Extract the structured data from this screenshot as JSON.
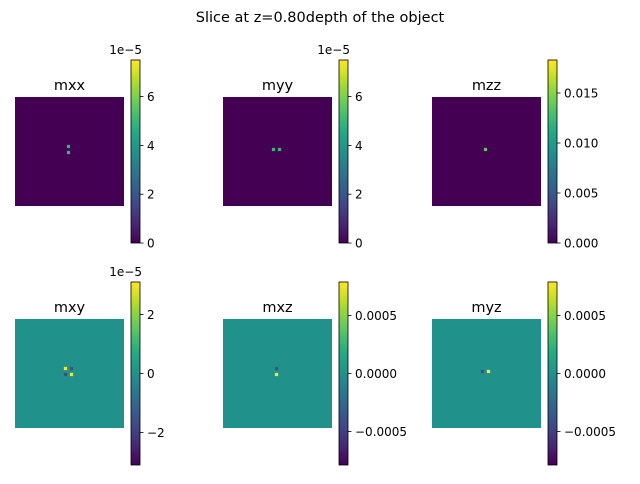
{
  "figure": {
    "title": "Slice at z=0.80depth of the object"
  },
  "chart_data": [
    {
      "type": "heatmap",
      "title": "mxx",
      "background_color": "#440154",
      "colorbar": {
        "min": 0,
        "max": 7.5e-05,
        "offset_text": "1e−5",
        "ticks": [
          0,
          2e-05,
          4e-05,
          6e-05
        ],
        "tick_labels": [
          "0",
          "2",
          "4",
          "6"
        ]
      },
      "spots": [
        {
          "x": 0.0,
          "y": -0.03,
          "color": "#35b779"
        },
        {
          "x": 0.0,
          "y": 0.03,
          "color": "#35b779"
        }
      ]
    },
    {
      "type": "heatmap",
      "title": "myy",
      "background_color": "#440154",
      "colorbar": {
        "min": 0,
        "max": 7.5e-05,
        "offset_text": "1e−5",
        "ticks": [
          0,
          2e-05,
          4e-05,
          6e-05
        ],
        "tick_labels": [
          "0",
          "2",
          "4",
          "6"
        ]
      },
      "spots": [
        {
          "x": -0.03,
          "y": 0.0,
          "color": "#35b779"
        },
        {
          "x": 0.03,
          "y": 0.0,
          "color": "#35b779"
        }
      ]
    },
    {
      "type": "heatmap",
      "title": "mzz",
      "background_color": "#440154",
      "colorbar": {
        "min": 0,
        "max": 0.0183,
        "offset_text": "",
        "ticks": [
          0,
          0.005,
          0.01,
          0.015
        ],
        "tick_labels": [
          "0.000",
          "0.005",
          "0.010",
          "0.015"
        ]
      },
      "spots": [
        {
          "x": 0.0,
          "y": 0.0,
          "color": "#5ec962"
        }
      ]
    },
    {
      "type": "heatmap",
      "title": "mxy",
      "background_color": "#21918c",
      "colorbar": {
        "min": -3.1e-05,
        "max": 3.1e-05,
        "offset_text": "1e−5",
        "ticks": [
          -2e-05,
          0,
          2e-05
        ],
        "tick_labels": [
          "−2",
          "0",
          "2"
        ]
      },
      "spots": [
        {
          "x": -0.03,
          "y": -0.03,
          "color": "#fde725"
        },
        {
          "x": 0.03,
          "y": 0.03,
          "color": "#fde725"
        },
        {
          "x": 0.03,
          "y": -0.03,
          "color": "#3b528b"
        },
        {
          "x": -0.03,
          "y": 0.03,
          "color": "#3b528b"
        }
      ]
    },
    {
      "type": "heatmap",
      "title": "mxz",
      "background_color": "#21918c",
      "colorbar": {
        "min": -0.00079,
        "max": 0.00079,
        "offset_text": "",
        "ticks": [
          -0.0005,
          0,
          0.0005
        ],
        "tick_labels": [
          "−0.0005",
          "0.0000",
          "0.0005"
        ]
      },
      "spots": [
        {
          "x": 0.0,
          "y": -0.03,
          "color": "#3b528b"
        },
        {
          "x": 0.0,
          "y": 0.03,
          "color": "#fde725"
        }
      ]
    },
    {
      "type": "heatmap",
      "title": "myz",
      "background_color": "#21918c",
      "colorbar": {
        "min": -0.00079,
        "max": 0.00079,
        "offset_text": "",
        "ticks": [
          -0.0005,
          0,
          0.0005
        ],
        "tick_labels": [
          "−0.0005",
          "0.0000",
          "0.0005"
        ]
      },
      "spots": [
        {
          "x": -0.03,
          "y": 0.0,
          "color": "#3b528b"
        },
        {
          "x": 0.03,
          "y": 0.0,
          "color": "#fde725"
        }
      ]
    }
  ]
}
